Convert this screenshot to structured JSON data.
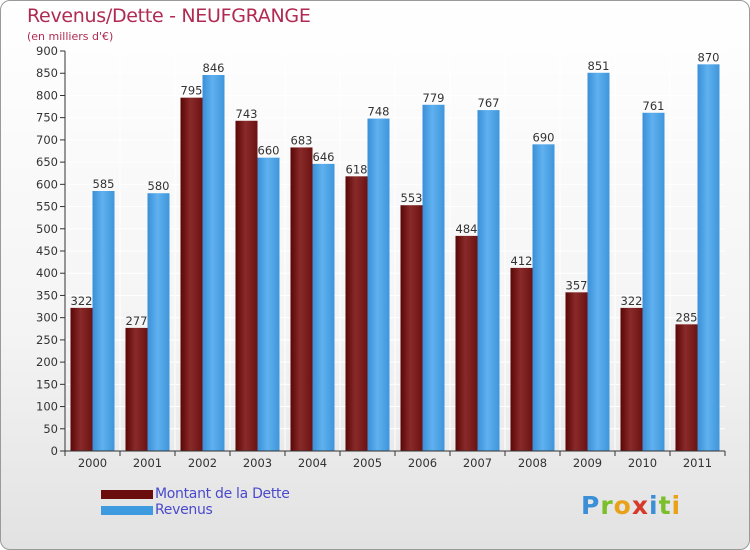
{
  "header": {
    "title": "Revenus/Dette - NEUFGRANGE",
    "subtitle": "(en milliers d'€)"
  },
  "colors": {
    "dette": "#7a1a1d",
    "revenus": "#4fa3e3",
    "title": "#b02a52",
    "legend_text": "#4a4acc"
  },
  "legend": [
    {
      "label": "Montant de la Dette",
      "color": "#6b0d0d"
    },
    {
      "label": "Revenus",
      "color": "#3f9be0"
    }
  ],
  "logo": {
    "letters": [
      {
        "ch": "P",
        "color": "#3b8fd6"
      },
      {
        "ch": "r",
        "color": "#7bbf2a"
      },
      {
        "ch": "o",
        "color": "#e9a11a"
      },
      {
        "ch": "x",
        "color": "#d63a2a"
      },
      {
        "ch": "i",
        "color": "#3b8fd6"
      },
      {
        "ch": "t",
        "color": "#7bbf2a"
      },
      {
        "ch": "i",
        "color": "#e9a11a"
      }
    ]
  },
  "chart_data": {
    "type": "bar",
    "title": "Revenus/Dette - NEUFGRANGE",
    "subtitle": "(en milliers d'€)",
    "categories": [
      "2000",
      "2001",
      "2002",
      "2003",
      "2004",
      "2005",
      "2006",
      "2007",
      "2008",
      "2009",
      "2010",
      "2011"
    ],
    "series": [
      {
        "name": "Montant de la Dette",
        "values": [
          322,
          277,
          795,
          743,
          683,
          618,
          553,
          484,
          412,
          357,
          322,
          285
        ]
      },
      {
        "name": "Revenus",
        "values": [
          585,
          580,
          846,
          660,
          646,
          748,
          779,
          767,
          690,
          851,
          761,
          870
        ]
      }
    ],
    "xlabel": "",
    "ylabel": "",
    "ylim": [
      0,
      900
    ],
    "yticks": [
      0,
      50,
      100,
      150,
      200,
      250,
      300,
      350,
      400,
      450,
      500,
      550,
      600,
      650,
      700,
      750,
      800,
      850,
      900
    ],
    "grid": true,
    "legend_position": "bottom-left"
  }
}
